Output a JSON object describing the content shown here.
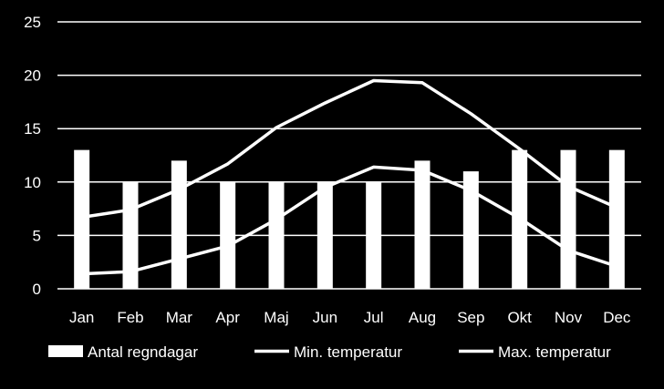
{
  "chart_data": {
    "type": "bar",
    "categories": [
      "Jan",
      "Feb",
      "Mar",
      "Apr",
      "Maj",
      "Jun",
      "Jul",
      "Aug",
      "Sep",
      "Okt",
      "Nov",
      "Dec"
    ],
    "ylim": [
      0,
      25
    ],
    "yticks": [
      0,
      5,
      10,
      15,
      20,
      25
    ],
    "grid": true,
    "legend_position": "bottom",
    "colors": {
      "background": "#000000",
      "foreground": "#ffffff"
    },
    "series": [
      {
        "name": "Antal regndagar",
        "kind": "bar",
        "values": [
          13,
          10,
          12,
          10,
          10,
          10,
          10,
          12,
          11,
          13,
          13,
          13
        ]
      },
      {
        "name": "Min. temperatur",
        "kind": "line",
        "values": [
          1.4,
          1.6,
          2.8,
          4.0,
          6.5,
          9.5,
          11.4,
          11.1,
          9.2,
          6.6,
          3.6,
          2.1
        ]
      },
      {
        "name": "Max. temperatur",
        "kind": "line",
        "values": [
          6.7,
          7.4,
          9.3,
          11.7,
          15.1,
          17.4,
          19.5,
          19.3,
          16.4,
          13.1,
          9.6,
          7.6
        ]
      }
    ]
  }
}
